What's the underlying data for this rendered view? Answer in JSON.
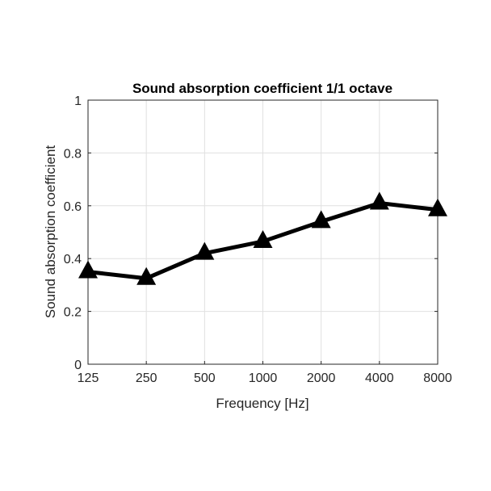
{
  "chart_data": {
    "type": "line",
    "title": "Sound absorption coefficient 1/1 octave",
    "xlabel": "Frequency [Hz]",
    "ylabel": "Sound absorption coefficient",
    "categories": [
      "125",
      "250",
      "500",
      "1000",
      "2000",
      "4000",
      "8000"
    ],
    "series": [
      {
        "name": "Sound absorption coefficient",
        "marker": "triangle",
        "color": "#000000",
        "values": [
          0.35,
          0.325,
          0.42,
          0.465,
          0.54,
          0.61,
          0.585
        ]
      }
    ],
    "ylim": [
      0,
      1
    ],
    "yticks": [
      "0",
      "0.2",
      "0.4",
      "0.6",
      "0.8",
      "1"
    ],
    "grid": true
  }
}
